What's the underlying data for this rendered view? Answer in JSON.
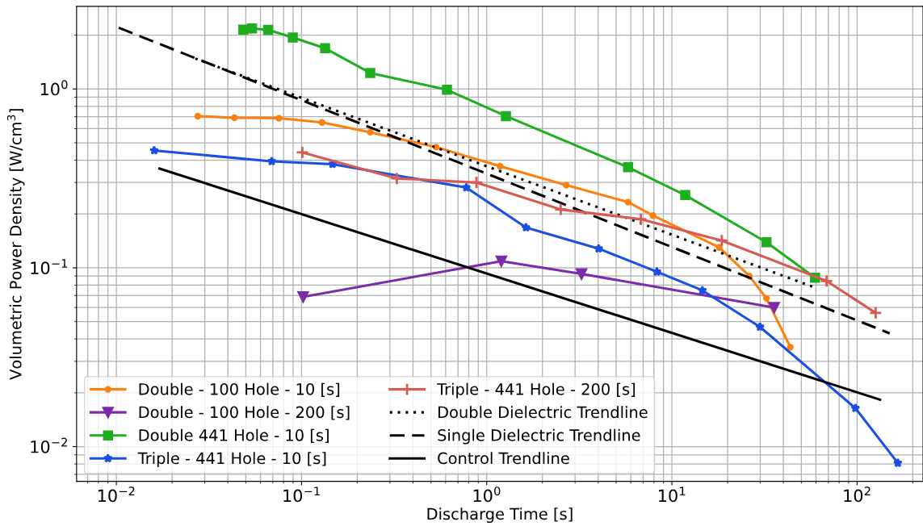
{
  "chart_data": {
    "type": "line",
    "xlabel": "Discharge Time [s]",
    "ylabel": "Volumetric Power Density [W/cm$^{3}$]",
    "log": "xy",
    "grid": true,
    "legend": "bottom left",
    "xlim": [
      0.0061,
      227
    ],
    "ylim": [
      0.0064,
      2.9
    ],
    "xticks": [
      {
        "value": 0.01,
        "label": "10$^{−2}$"
      },
      {
        "value": 0.1,
        "label": "10$^{−1}$"
      },
      {
        "value": 1,
        "label": "10$^{0}$"
      },
      {
        "value": 10,
        "label": "10$^{1}$"
      },
      {
        "value": 100,
        "label": "10$^{2}$"
      }
    ],
    "yticks": [
      {
        "value": 0.01,
        "label": "10$^{−2}$"
      },
      {
        "value": 0.1,
        "label": "10$^{−1}$"
      },
      {
        "value": 1,
        "label": "10$^{0}$"
      }
    ],
    "series": [
      {
        "name": "Double - 100 Hole - 10 [s]",
        "color": "#ff7f0e",
        "marker": "circle",
        "line_style": "solid",
        "x": [
          0.0275,
          0.0434,
          0.0755,
          0.129,
          0.235,
          0.533,
          1.18,
          2.69,
          5.8,
          7.9,
          18.0,
          26.2,
          32.4,
          43.6
        ],
        "values": [
          0.705,
          0.69,
          0.686,
          0.65,
          0.573,
          0.473,
          0.37,
          0.29,
          0.233,
          0.196,
          0.13,
          0.09,
          0.0675,
          0.036
        ]
      },
      {
        "name": "Double - 100 Hole - 200 [s]",
        "color": "#7b2bab",
        "marker": "triangle",
        "line_style": "solid",
        "x": [
          0.102,
          1.2,
          3.25,
          35.7
        ],
        "values": [
          0.0688,
          0.109,
          0.0925,
          0.06
        ]
      },
      {
        "name": "Double 441 Hole - 10 [s]",
        "color": "#1fae1f",
        "marker": "square",
        "line_style": "solid",
        "x": [
          0.0485,
          0.054,
          0.066,
          0.0897,
          0.134,
          0.235,
          0.61,
          1.27,
          5.8,
          11.8,
          32.4,
          59.3
        ],
        "values": [
          2.15,
          2.18,
          2.14,
          1.94,
          1.69,
          1.23,
          0.99,
          0.705,
          0.365,
          0.255,
          0.139,
          0.088
        ]
      },
      {
        "name": "Triple - 441 Hole - 10 [s]",
        "color": "#1a4fe6",
        "marker": "star",
        "line_style": "solid",
        "x": [
          0.016,
          0.069,
          0.147,
          0.776,
          1.63,
          4.02,
          8.3,
          14.6,
          29.9,
          98,
          166
        ],
        "values": [
          0.453,
          0.394,
          0.38,
          0.281,
          0.168,
          0.128,
          0.095,
          0.0748,
          0.0467,
          0.0164,
          0.0081
        ]
      },
      {
        "name": "Triple - 441 Hole - 200 [s]",
        "color": "#d95a52",
        "marker": "cross",
        "line_style": "solid",
        "x": [
          0.101,
          0.327,
          0.88,
          2.51,
          6.8,
          18.6,
          68.4,
          126
        ],
        "values": [
          0.442,
          0.316,
          0.3,
          0.212,
          0.187,
          0.142,
          0.0844,
          0.056
        ]
      },
      {
        "name": "Double Dielectric Trendline",
        "color": "#000000",
        "marker": "none",
        "line_style": "dotted",
        "x": [
          0.0267,
          59.3
        ],
        "values": [
          1.48,
          0.0775
        ]
      },
      {
        "name": "Single Dielectric Trendline",
        "color": "#000000",
        "marker": "none",
        "line_style": "dashed",
        "x": [
          0.0103,
          150
        ],
        "values": [
          2.2,
          0.043
        ]
      },
      {
        "name": "Control Trendline",
        "color": "#000000",
        "marker": "none",
        "line_style": "solid",
        "x": [
          0.0171,
          133
        ],
        "values": [
          0.359,
          0.0183
        ]
      }
    ]
  }
}
